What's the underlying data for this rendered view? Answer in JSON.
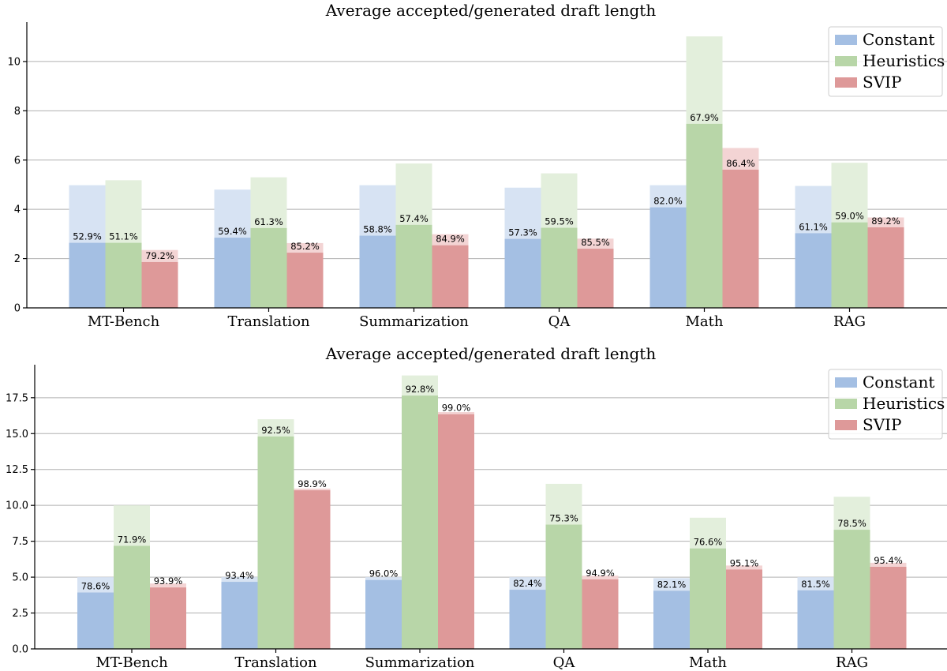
{
  "chart_data": [
    {
      "type": "bar",
      "title": "Average accepted/generated draft length",
      "categories": [
        "MT-Bench",
        "Translation",
        "Summarization",
        "QA",
        "Math",
        "RAG"
      ],
      "yticks": [
        "0",
        "2",
        "4",
        "6",
        "8",
        "10"
      ],
      "ylim": [
        0,
        11.6
      ],
      "grid": true,
      "legend_position": "top-right",
      "series": [
        {
          "name": "Constant",
          "color": "#a4bfe3",
          "light_color": "#d7e3f3",
          "accepted": [
            2.64,
            2.85,
            2.93,
            2.8,
            4.08,
            3.03
          ],
          "generated": [
            4.98,
            4.8,
            4.98,
            4.88,
            4.98,
            4.95
          ],
          "labels": [
            "52.9%",
            "59.4%",
            "58.8%",
            "57.3%",
            "82.0%",
            "61.1%"
          ]
        },
        {
          "name": "Heuristics",
          "color": "#b8d6a8",
          "light_color": "#e3efdc",
          "accepted": [
            2.64,
            3.24,
            3.37,
            3.25,
            7.47,
            3.47
          ],
          "generated": [
            5.18,
            5.3,
            5.86,
            5.46,
            11.02,
            5.89
          ],
          "labels": [
            "51.1%",
            "61.3%",
            "57.4%",
            "59.5%",
            "67.9%",
            "59.0%"
          ]
        },
        {
          "name": "SVIP",
          "color": "#de9999",
          "light_color": "#f3d4d4",
          "accepted": [
            1.86,
            2.24,
            2.54,
            2.4,
            5.61,
            3.27
          ],
          "generated": [
            2.35,
            2.63,
            2.99,
            2.81,
            6.49,
            3.67
          ],
          "labels": [
            "79.2%",
            "85.2%",
            "84.9%",
            "85.5%",
            "86.4%",
            "89.2%"
          ]
        }
      ]
    },
    {
      "type": "bar",
      "title": "Average accepted/generated draft length",
      "categories": [
        "MT-Bench",
        "Translation",
        "Summarization",
        "QA",
        "Math",
        "RAG"
      ],
      "yticks": [
        "0.0",
        "2.5",
        "5.0",
        "7.5",
        "10.0",
        "12.5",
        "15.0",
        "17.5"
      ],
      "ylim": [
        0,
        19.8
      ],
      "grid": true,
      "legend_position": "top-right",
      "series": [
        {
          "name": "Constant",
          "color": "#a4bfe3",
          "light_color": "#d7e3f3",
          "accepted": [
            3.93,
            4.67,
            4.8,
            4.12,
            4.05,
            4.08
          ],
          "generated": [
            5.0,
            5.0,
            5.0,
            5.0,
            4.93,
            5.0
          ],
          "labels": [
            "78.6%",
            "93.4%",
            "96.0%",
            "82.4%",
            "82.1%",
            "81.5%"
          ]
        },
        {
          "name": "Heuristics",
          "color": "#b8d6a8",
          "light_color": "#e3efdc",
          "accepted": [
            7.18,
            14.8,
            17.65,
            8.66,
            7.0,
            8.3
          ],
          "generated": [
            10.0,
            16.0,
            19.05,
            11.5,
            9.14,
            10.6
          ],
          "labels": [
            "71.9%",
            "92.5%",
            "92.8%",
            "75.3%",
            "76.6%",
            "78.5%"
          ]
        },
        {
          "name": "SVIP",
          "color": "#de9999",
          "light_color": "#f3d4d4",
          "accepted": [
            4.28,
            11.05,
            16.35,
            4.84,
            5.53,
            5.72
          ],
          "generated": [
            4.56,
            11.17,
            16.5,
            5.1,
            5.81,
            6.0
          ],
          "labels": [
            "93.9%",
            "98.9%",
            "99.0%",
            "94.9%",
            "95.1%",
            "95.4%"
          ]
        }
      ]
    }
  ]
}
